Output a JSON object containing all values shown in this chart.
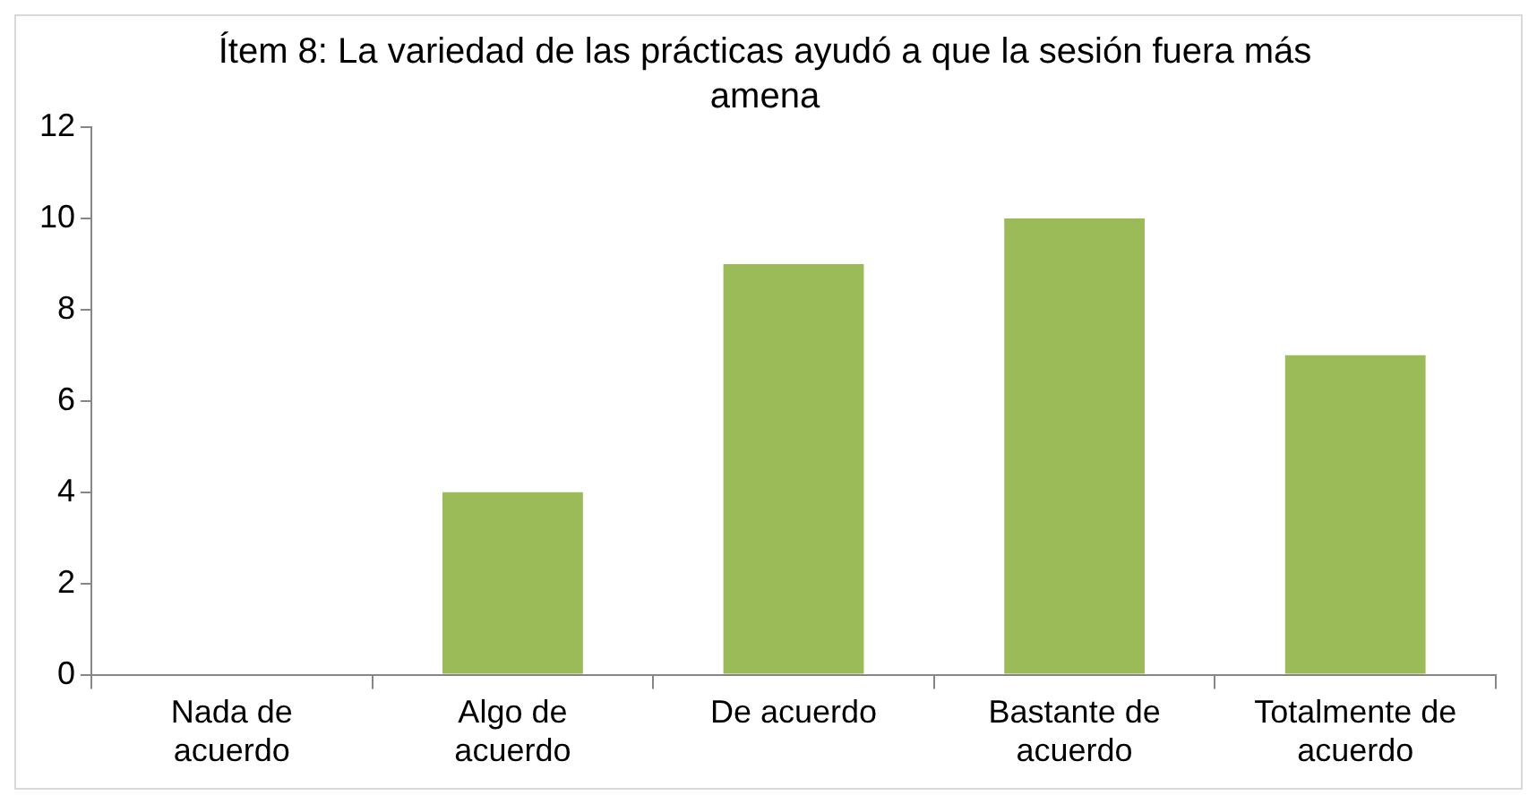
{
  "chart_data": {
    "type": "bar",
    "title": "Ítem 8: La variedad de las prácticas ayudó a que la sesión fuera más amena",
    "categories": [
      "Nada de acuerdo",
      "Algo de acuerdo",
      "De acuerdo",
      "Bastante de acuerdo",
      "Totalmente de acuerdo"
    ],
    "values": [
      0,
      4,
      9,
      10,
      7
    ],
    "color": "#9bbb59",
    "ylim": [
      0,
      12
    ],
    "yticks": [
      0,
      2,
      4,
      6,
      8,
      10,
      12
    ],
    "legend": false
  }
}
